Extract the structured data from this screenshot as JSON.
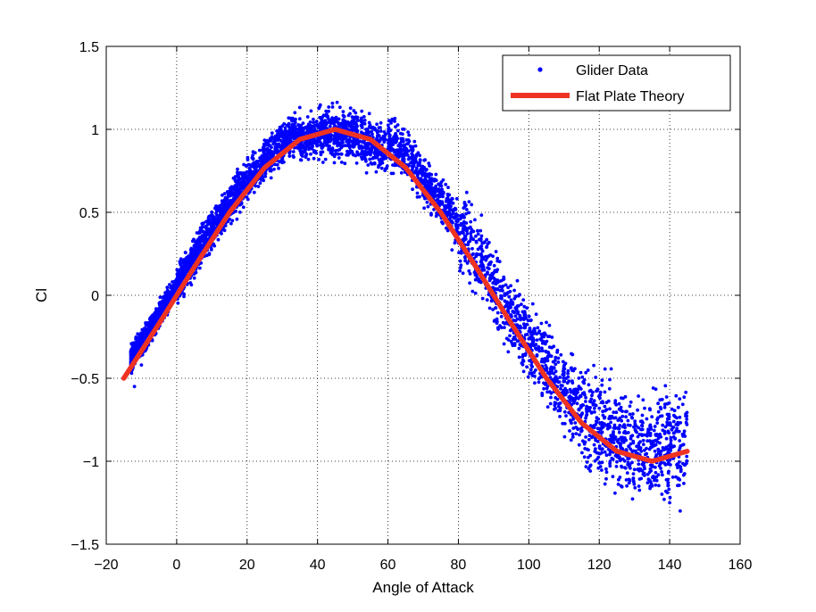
{
  "chart_data": {
    "type": "scatter",
    "title": "",
    "xlabel": "Angle of Attack",
    "ylabel": "Cl",
    "xlim": [
      -20,
      160
    ],
    "ylim": [
      -1.5,
      1.5
    ],
    "xticks": [
      -20,
      0,
      20,
      40,
      60,
      80,
      100,
      120,
      140,
      160
    ],
    "yticks": [
      -1.5,
      -1,
      -0.5,
      0,
      0.5,
      1,
      1.5
    ],
    "xtick_labels": [
      "−20",
      "0",
      "20",
      "40",
      "60",
      "80",
      "100",
      "120",
      "140",
      "160"
    ],
    "ytick_labels": [
      "−1.5",
      "−1",
      "−0.5",
      "0",
      "0.5",
      "1",
      "1.5"
    ],
    "grid": true,
    "legend_position": "top-right",
    "series": [
      {
        "name": "Glider Data",
        "kind": "scatter",
        "color": "#0000ff",
        "x_range": [
          -13,
          145
        ],
        "trend": "approximately sin(2*alpha); dense near 0-45 deg, sparse near 140 deg",
        "samples": [
          [
            -12,
            -0.55
          ],
          [
            -10,
            -0.42
          ],
          [
            -8,
            -0.3
          ],
          [
            -5,
            -0.12
          ],
          [
            0,
            0.05
          ],
          [
            5,
            0.3
          ],
          [
            10,
            0.48
          ],
          [
            15,
            0.6
          ],
          [
            20,
            0.72
          ],
          [
            25,
            0.83
          ],
          [
            30,
            0.9
          ],
          [
            35,
            0.95
          ],
          [
            40,
            0.98
          ],
          [
            45,
            1.02
          ],
          [
            50,
            1.0
          ],
          [
            55,
            0.95
          ],
          [
            60,
            0.85
          ],
          [
            65,
            0.75
          ],
          [
            70,
            0.62
          ],
          [
            75,
            0.48
          ],
          [
            80,
            0.32
          ],
          [
            85,
            0.18
          ],
          [
            90,
            0.02
          ],
          [
            95,
            -0.12
          ],
          [
            100,
            -0.3
          ],
          [
            105,
            -0.45
          ],
          [
            110,
            -0.6
          ],
          [
            115,
            -0.72
          ],
          [
            120,
            -0.85
          ],
          [
            125,
            -0.95
          ],
          [
            130,
            -1.05
          ],
          [
            135,
            -1.15
          ],
          [
            140,
            -1.25
          ],
          [
            143,
            -1.3
          ]
        ]
      },
      {
        "name": "Flat Plate Theory",
        "kind": "line",
        "color": "#ee3322",
        "x": [
          -15,
          -5,
          5,
          15,
          25,
          35,
          45,
          55,
          65,
          75,
          85,
          95,
          105,
          115,
          125,
          135,
          145
        ],
        "y": [
          -0.5,
          -0.17,
          0.17,
          0.5,
          0.77,
          0.94,
          1.0,
          0.94,
          0.77,
          0.5,
          0.17,
          -0.17,
          -0.5,
          -0.77,
          -0.94,
          -1.0,
          -0.94
        ]
      }
    ]
  }
}
